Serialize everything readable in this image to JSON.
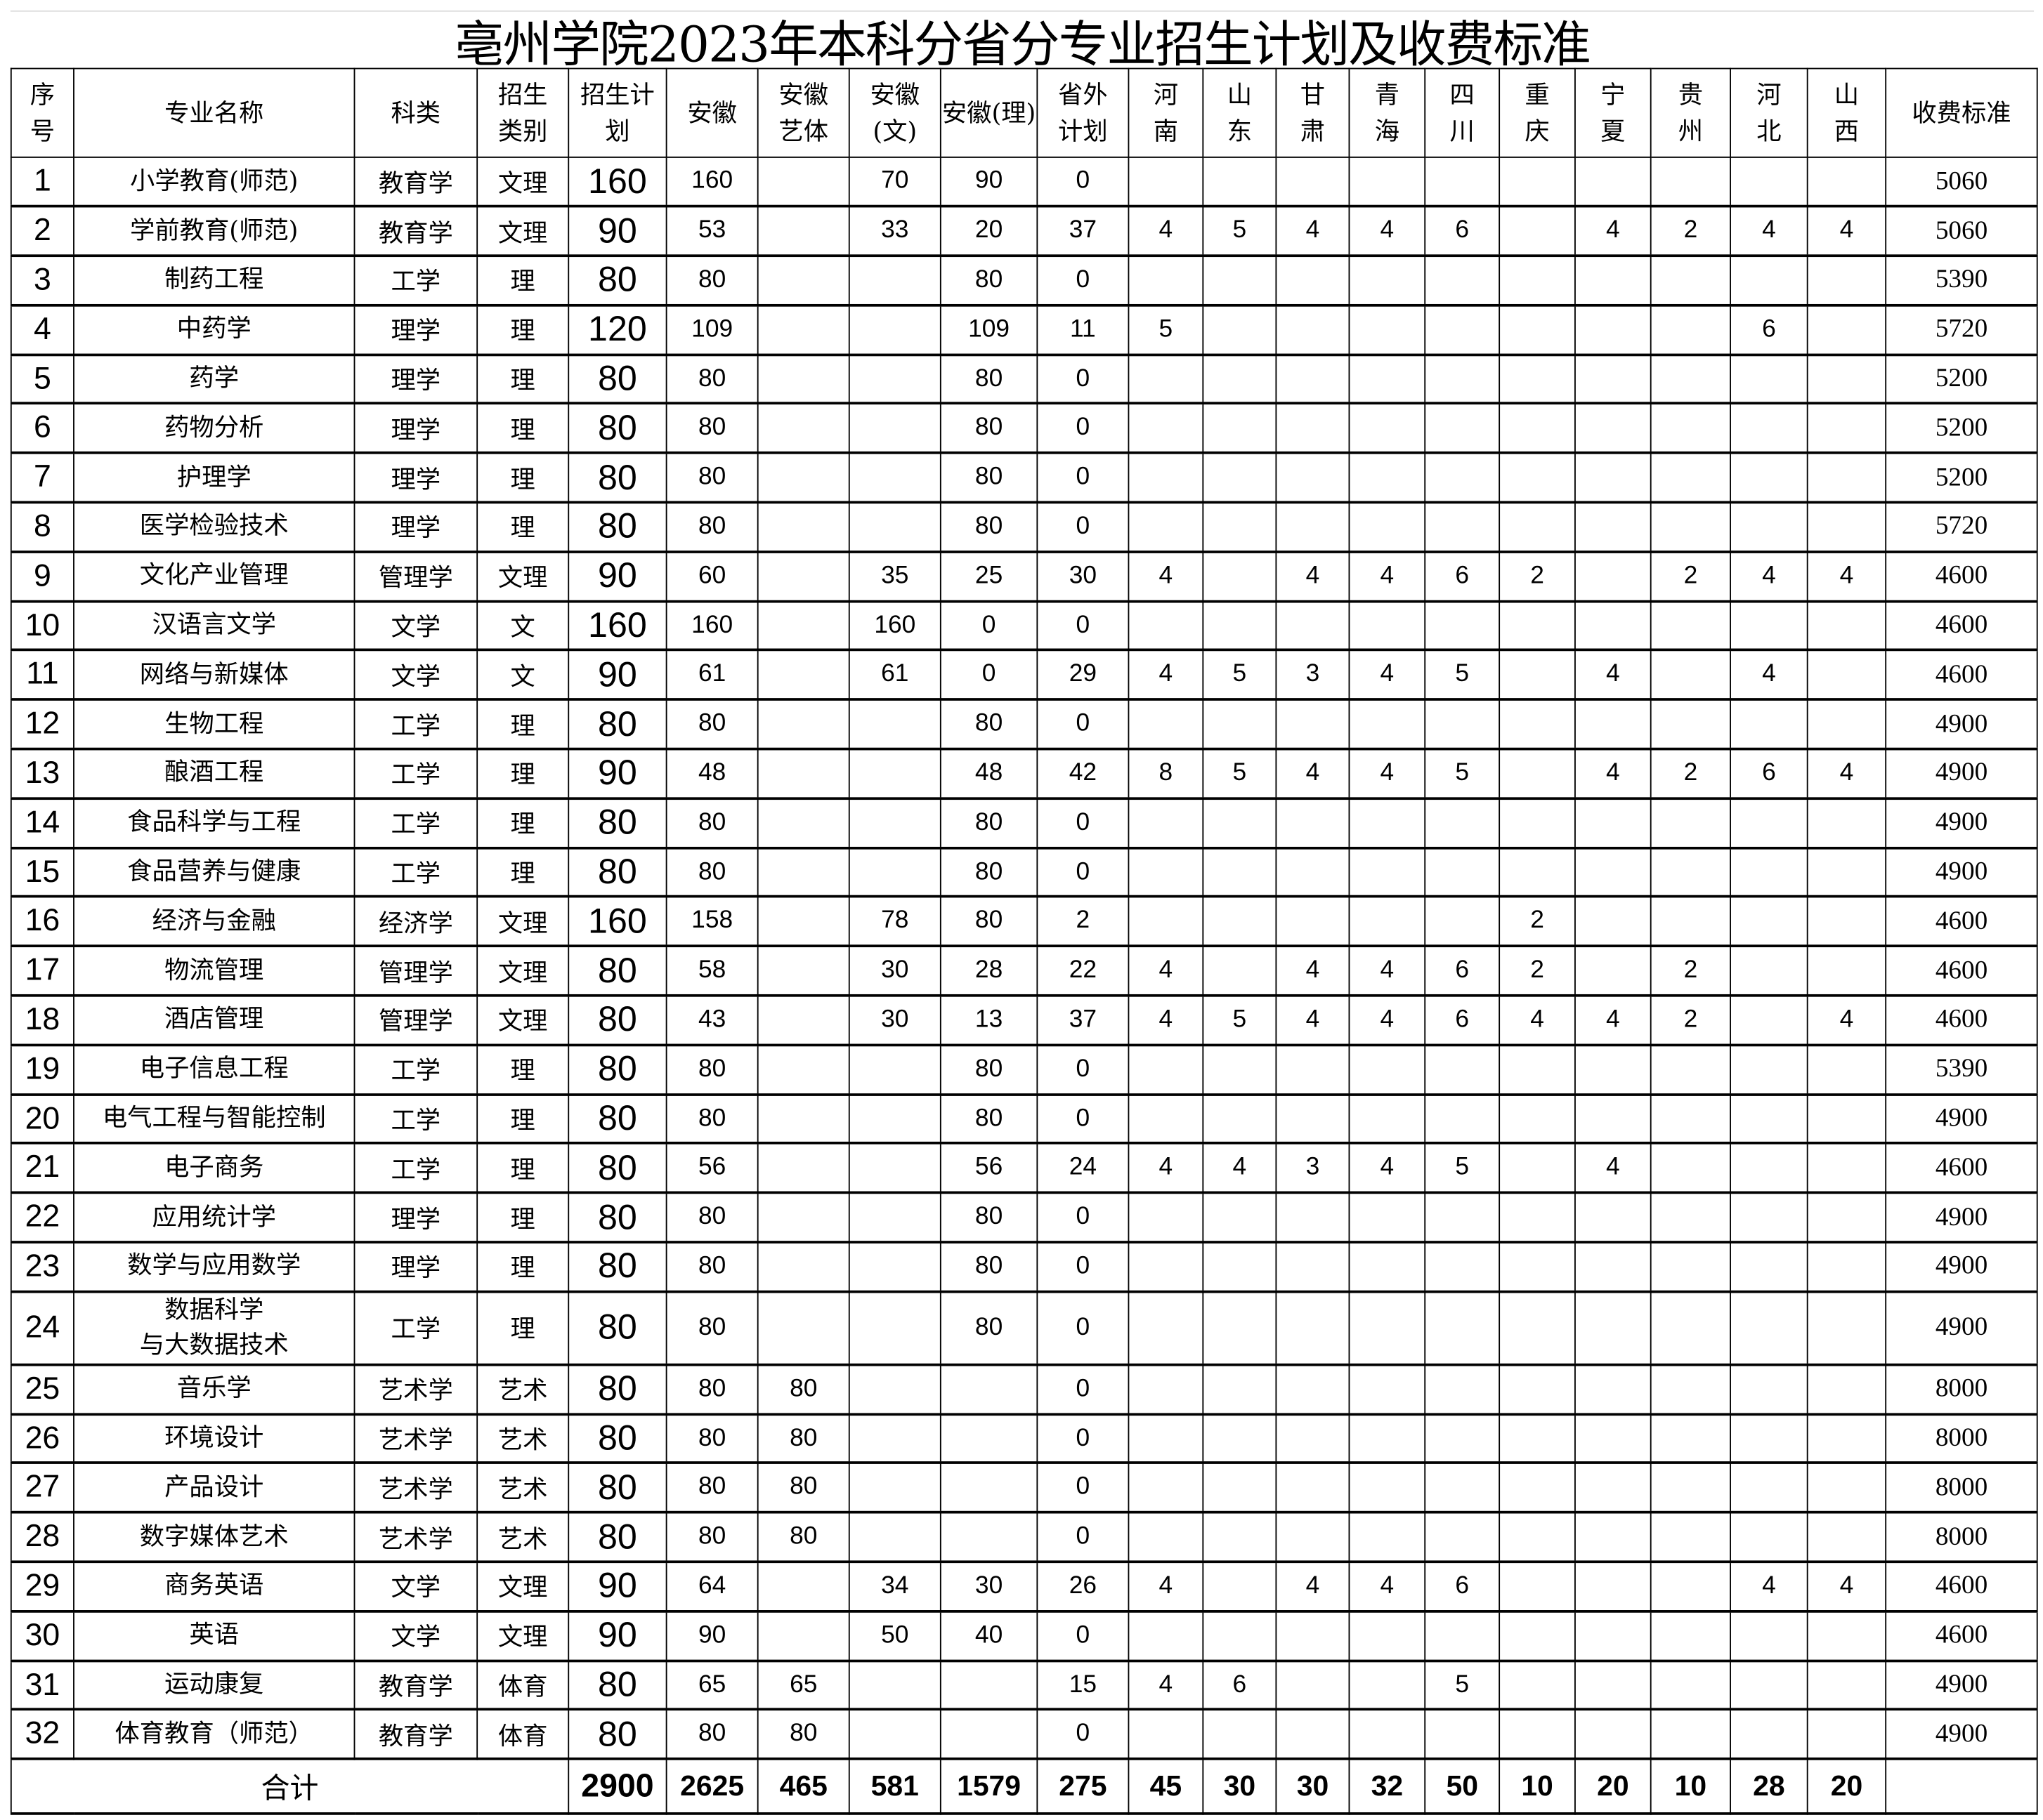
{
  "title": "亳州学院2023年本科分省分专业招生计划及收费标准",
  "headers": [
    "序号",
    "专业名称",
    "科类",
    "招生类别",
    "招生计划",
    "安徽",
    "安徽艺体",
    "安徽(文)",
    "安徽(理)",
    "省外计划",
    "河南",
    "山东",
    "甘肃",
    "青海",
    "四川",
    "重庆",
    "宁夏",
    "贵州",
    "河北",
    "山西",
    "收费标准"
  ],
  "rows": [
    [
      "1",
      "小学教育(师范)",
      "教育学",
      "文理",
      "160",
      "160",
      "",
      "70",
      "90",
      "0",
      "",
      "",
      "",
      "",
      "",
      "",
      "",
      "",
      "",
      "",
      "5060"
    ],
    [
      "2",
      "学前教育(师范)",
      "教育学",
      "文理",
      "90",
      "53",
      "",
      "33",
      "20",
      "37",
      "4",
      "5",
      "4",
      "4",
      "6",
      "",
      "4",
      "2",
      "4",
      "4",
      "5060"
    ],
    [
      "3",
      "制药工程",
      "工学",
      "理",
      "80",
      "80",
      "",
      "",
      "80",
      "0",
      "",
      "",
      "",
      "",
      "",
      "",
      "",
      "",
      "",
      "",
      "5390"
    ],
    [
      "4",
      "中药学",
      "理学",
      "理",
      "120",
      "109",
      "",
      "",
      "109",
      "11",
      "5",
      "",
      "",
      "",
      "",
      "",
      "",
      "",
      "6",
      "",
      "5720"
    ],
    [
      "5",
      "药学",
      "理学",
      "理",
      "80",
      "80",
      "",
      "",
      "80",
      "0",
      "",
      "",
      "",
      "",
      "",
      "",
      "",
      "",
      "",
      "",
      "5200"
    ],
    [
      "6",
      "药物分析",
      "理学",
      "理",
      "80",
      "80",
      "",
      "",
      "80",
      "0",
      "",
      "",
      "",
      "",
      "",
      "",
      "",
      "",
      "",
      "",
      "5200"
    ],
    [
      "7",
      "护理学",
      "理学",
      "理",
      "80",
      "80",
      "",
      "",
      "80",
      "0",
      "",
      "",
      "",
      "",
      "",
      "",
      "",
      "",
      "",
      "",
      "5200"
    ],
    [
      "8",
      "医学检验技术",
      "理学",
      "理",
      "80",
      "80",
      "",
      "",
      "80",
      "0",
      "",
      "",
      "",
      "",
      "",
      "",
      "",
      "",
      "",
      "",
      "5720"
    ],
    [
      "9",
      "文化产业管理",
      "管理学",
      "文理",
      "90",
      "60",
      "",
      "35",
      "25",
      "30",
      "4",
      "",
      "4",
      "4",
      "6",
      "2",
      "",
      "2",
      "4",
      "4",
      "4600"
    ],
    [
      "10",
      "汉语言文学",
      "文学",
      "文",
      "160",
      "160",
      "",
      "160",
      "0",
      "0",
      "",
      "",
      "",
      "",
      "",
      "",
      "",
      "",
      "",
      "",
      "4600"
    ],
    [
      "11",
      "网络与新媒体",
      "文学",
      "文",
      "90",
      "61",
      "",
      "61",
      "0",
      "29",
      "4",
      "5",
      "3",
      "4",
      "5",
      "",
      "4",
      "",
      "4",
      "",
      "4600"
    ],
    [
      "12",
      "生物工程",
      "工学",
      "理",
      "80",
      "80",
      "",
      "",
      "80",
      "0",
      "",
      "",
      "",
      "",
      "",
      "",
      "",
      "",
      "",
      "",
      "4900"
    ],
    [
      "13",
      "酿酒工程",
      "工学",
      "理",
      "90",
      "48",
      "",
      "",
      "48",
      "42",
      "8",
      "5",
      "4",
      "4",
      "5",
      "",
      "4",
      "2",
      "6",
      "4",
      "4900"
    ],
    [
      "14",
      "食品科学与工程",
      "工学",
      "理",
      "80",
      "80",
      "",
      "",
      "80",
      "0",
      "",
      "",
      "",
      "",
      "",
      "",
      "",
      "",
      "",
      "",
      "4900"
    ],
    [
      "15",
      "食品营养与健康",
      "工学",
      "理",
      "80",
      "80",
      "",
      "",
      "80",
      "0",
      "",
      "",
      "",
      "",
      "",
      "",
      "",
      "",
      "",
      "",
      "4900"
    ],
    [
      "16",
      "经济与金融",
      "经济学",
      "文理",
      "160",
      "158",
      "",
      "78",
      "80",
      "2",
      "",
      "",
      "",
      "",
      "",
      "2",
      "",
      "",
      "",
      "",
      "4600"
    ],
    [
      "17",
      "物流管理",
      "管理学",
      "文理",
      "80",
      "58",
      "",
      "30",
      "28",
      "22",
      "4",
      "",
      "4",
      "4",
      "6",
      "2",
      "",
      "2",
      "",
      "",
      "4600"
    ],
    [
      "18",
      "酒店管理",
      "管理学",
      "文理",
      "80",
      "43",
      "",
      "30",
      "13",
      "37",
      "4",
      "5",
      "4",
      "4",
      "6",
      "4",
      "4",
      "2",
      "",
      "4",
      "4600"
    ],
    [
      "19",
      "电子信息工程",
      "工学",
      "理",
      "80",
      "80",
      "",
      "",
      "80",
      "0",
      "",
      "",
      "",
      "",
      "",
      "",
      "",
      "",
      "",
      "",
      "5390"
    ],
    [
      "20",
      "电气工程与智能控制",
      "工学",
      "理",
      "80",
      "80",
      "",
      "",
      "80",
      "0",
      "",
      "",
      "",
      "",
      "",
      "",
      "",
      "",
      "",
      "",
      "4900"
    ],
    [
      "21",
      "电子商务",
      "工学",
      "理",
      "80",
      "56",
      "",
      "",
      "56",
      "24",
      "4",
      "4",
      "3",
      "4",
      "5",
      "",
      "4",
      "",
      "",
      "",
      "4600"
    ],
    [
      "22",
      "应用统计学",
      "理学",
      "理",
      "80",
      "80",
      "",
      "",
      "80",
      "0",
      "",
      "",
      "",
      "",
      "",
      "",
      "",
      "",
      "",
      "",
      "4900"
    ],
    [
      "23",
      "数学与应用数学",
      "理学",
      "理",
      "80",
      "80",
      "",
      "",
      "80",
      "0",
      "",
      "",
      "",
      "",
      "",
      "",
      "",
      "",
      "",
      "",
      "4900"
    ],
    [
      "24",
      "数据科学\n与大数据技术",
      "工学",
      "理",
      "80",
      "80",
      "",
      "",
      "80",
      "0",
      "",
      "",
      "",
      "",
      "",
      "",
      "",
      "",
      "",
      "",
      "4900"
    ],
    [
      "25",
      "音乐学",
      "艺术学",
      "艺术",
      "80",
      "80",
      "80",
      "",
      "",
      "0",
      "",
      "",
      "",
      "",
      "",
      "",
      "",
      "",
      "",
      "",
      "8000"
    ],
    [
      "26",
      "环境设计",
      "艺术学",
      "艺术",
      "80",
      "80",
      "80",
      "",
      "",
      "0",
      "",
      "",
      "",
      "",
      "",
      "",
      "",
      "",
      "",
      "",
      "8000"
    ],
    [
      "27",
      "产品设计",
      "艺术学",
      "艺术",
      "80",
      "80",
      "80",
      "",
      "",
      "0",
      "",
      "",
      "",
      "",
      "",
      "",
      "",
      "",
      "",
      "",
      "8000"
    ],
    [
      "28",
      "数字媒体艺术",
      "艺术学",
      "艺术",
      "80",
      "80",
      "80",
      "",
      "",
      "0",
      "",
      "",
      "",
      "",
      "",
      "",
      "",
      "",
      "",
      "",
      "8000"
    ],
    [
      "29",
      "商务英语",
      "文学",
      "文理",
      "90",
      "64",
      "",
      "34",
      "30",
      "26",
      "4",
      "",
      "4",
      "4",
      "6",
      "",
      "",
      "",
      "4",
      "4",
      "4600"
    ],
    [
      "30",
      "英语",
      "文学",
      "文理",
      "90",
      "90",
      "",
      "50",
      "40",
      "0",
      "",
      "",
      "",
      "",
      "",
      "",
      "",
      "",
      "",
      "",
      "4600"
    ],
    [
      "31",
      "运动康复",
      "教育学",
      "体育",
      "80",
      "65",
      "65",
      "",
      "",
      "15",
      "4",
      "6",
      "",
      "",
      "5",
      "",
      "",
      "",
      "",
      "",
      "4900"
    ],
    [
      "32",
      "体育教育（师范）",
      "教育学",
      "体育",
      "80",
      "80",
      "80",
      "",
      "",
      "0",
      "",
      "",
      "",
      "",
      "",
      "",
      "",
      "",
      "",
      "",
      "4900"
    ]
  ],
  "total": {
    "label": "合计",
    "values": [
      "2900",
      "2625",
      "465",
      "581",
      "1579",
      "275",
      "45",
      "30",
      "30",
      "32",
      "50",
      "10",
      "20",
      "10",
      "28",
      "20",
      ""
    ]
  }
}
